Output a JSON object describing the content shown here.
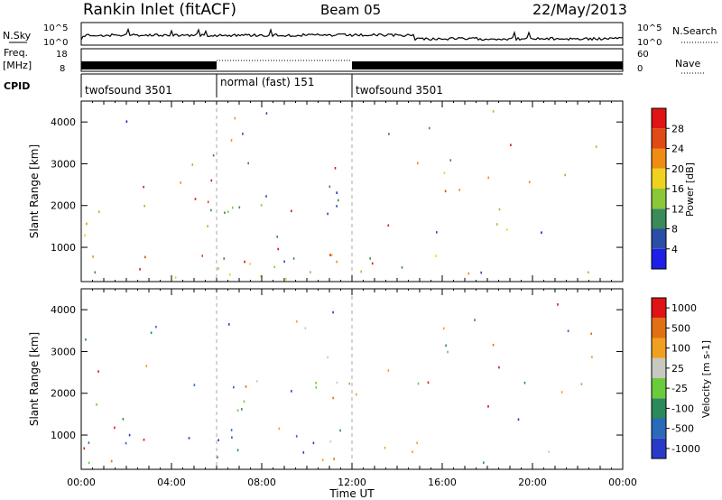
{
  "header": {
    "station": "Rankin Inlet (fitACF)",
    "beam": "Beam 05",
    "date": "22/May/2013"
  },
  "top_panels": {
    "nsky_label": "N.Sky",
    "nsearch_label": "N.Search",
    "nsky_ticks": [
      "10^5",
      "10^0"
    ],
    "freq_label": [
      "Freq.",
      "[MHz]"
    ],
    "freq_ticks": [
      "18",
      "8"
    ],
    "nave_label": "Nave",
    "nave_ticks": [
      "60",
      "0"
    ],
    "cpid_label": "CPID",
    "cpid_segments": [
      {
        "start": 0,
        "end": 6,
        "label": "twofsound 3501"
      },
      {
        "start": 6,
        "end": 12,
        "label": "normal (fast) 151"
      },
      {
        "start": 12,
        "end": 24,
        "label": "twofsound 3501"
      }
    ]
  },
  "chart_data": [
    {
      "type": "heatmap",
      "title": "",
      "ylabel": "Slant Range [km]",
      "yticks": [
        "1000",
        "2000",
        "3000",
        "4000"
      ],
      "ylim": [
        180,
        4500
      ],
      "colorbar_label": "Power [dB]",
      "colorbar_ticks": [
        "4",
        "8",
        "12",
        "16",
        "20",
        "24",
        "28"
      ],
      "colors": [
        "#1e1ee6",
        "#2a4ea8",
        "#3a8a5a",
        "#8ac83a",
        "#f0d21e",
        "#f08c14",
        "#e04a14",
        "#e01414"
      ],
      "scatter_regions": [
        {
          "t0": 0.3,
          "t1": 1.0,
          "r0": 1650,
          "r1": 2400,
          "v": 0.4
        },
        {
          "t0": 2.0,
          "t1": 6.5,
          "r0": 1400,
          "r1": 2100,
          "v": 0.35
        },
        {
          "t0": 4.5,
          "t1": 12.3,
          "r0": 1700,
          "r1": 2450,
          "v": 0.25
        },
        {
          "t0": 10.2,
          "t1": 11.0,
          "r0": 2200,
          "r1": 2800,
          "v": 0.2
        },
        {
          "t0": 0.2,
          "t1": 1.5,
          "r0": 500,
          "r1": 1200,
          "v": 0.5
        },
        {
          "t0": 0.5,
          "t1": 15.0,
          "r0": 200,
          "r1": 1000,
          "v": 0.45
        },
        {
          "t0": 7.0,
          "t1": 11.5,
          "r0": 600,
          "r1": 1000,
          "v": 0.7
        },
        {
          "t0": 3.8,
          "t1": 6.2,
          "r0": 500,
          "r1": 1000,
          "v": 0.9
        },
        {
          "t0": 0.8,
          "t1": 3.0,
          "r0": 180,
          "r1": 650,
          "v": 0.97
        }
      ]
    },
    {
      "type": "heatmap",
      "title": "",
      "ylabel": "Slant Range [km]",
      "xlabel": "Time UT",
      "xticks": [
        "00:00",
        "04:00",
        "08:00",
        "12:00",
        "16:00",
        "20:00",
        "00:00"
      ],
      "xlim": [
        0,
        24
      ],
      "yticks": [
        "1000",
        "2000",
        "3000",
        "4000"
      ],
      "ylim": [
        180,
        4500
      ],
      "colorbar_label": "Velocity [m s-1]",
      "colorbar_ticks": [
        "1000",
        "500",
        "100",
        "25",
        "-25",
        "-100",
        "-500",
        "-1000"
      ],
      "colors": [
        "#2a3ac8",
        "#2a6ab8",
        "#2a8a5a",
        "#6acc3a",
        "#c8c8c0",
        "#f0a020",
        "#e07014",
        "#e01414"
      ],
      "scatter_regions": [
        {
          "t0": 5.5,
          "t1": 12.5,
          "r0": 1500,
          "r1": 2450,
          "v": 0.5
        },
        {
          "t0": 10.0,
          "t1": 11.5,
          "r0": 2000,
          "r1": 2800,
          "v": 0.5
        },
        {
          "t0": 0.3,
          "t1": 1.0,
          "r0": 1700,
          "r1": 2600,
          "v": 0.45
        },
        {
          "t0": 0.2,
          "t1": 3.0,
          "r0": 180,
          "r1": 900,
          "v": 0.3
        },
        {
          "t0": 3.5,
          "t1": 6.0,
          "r0": 700,
          "r1": 1100,
          "v": 0.05
        },
        {
          "t0": 6.0,
          "t1": 11.5,
          "r0": 500,
          "r1": 1300,
          "v": 0.2
        },
        {
          "t0": 10.0,
          "t1": 15.0,
          "r0": 300,
          "r1": 1100,
          "v": 0.7
        }
      ]
    }
  ]
}
